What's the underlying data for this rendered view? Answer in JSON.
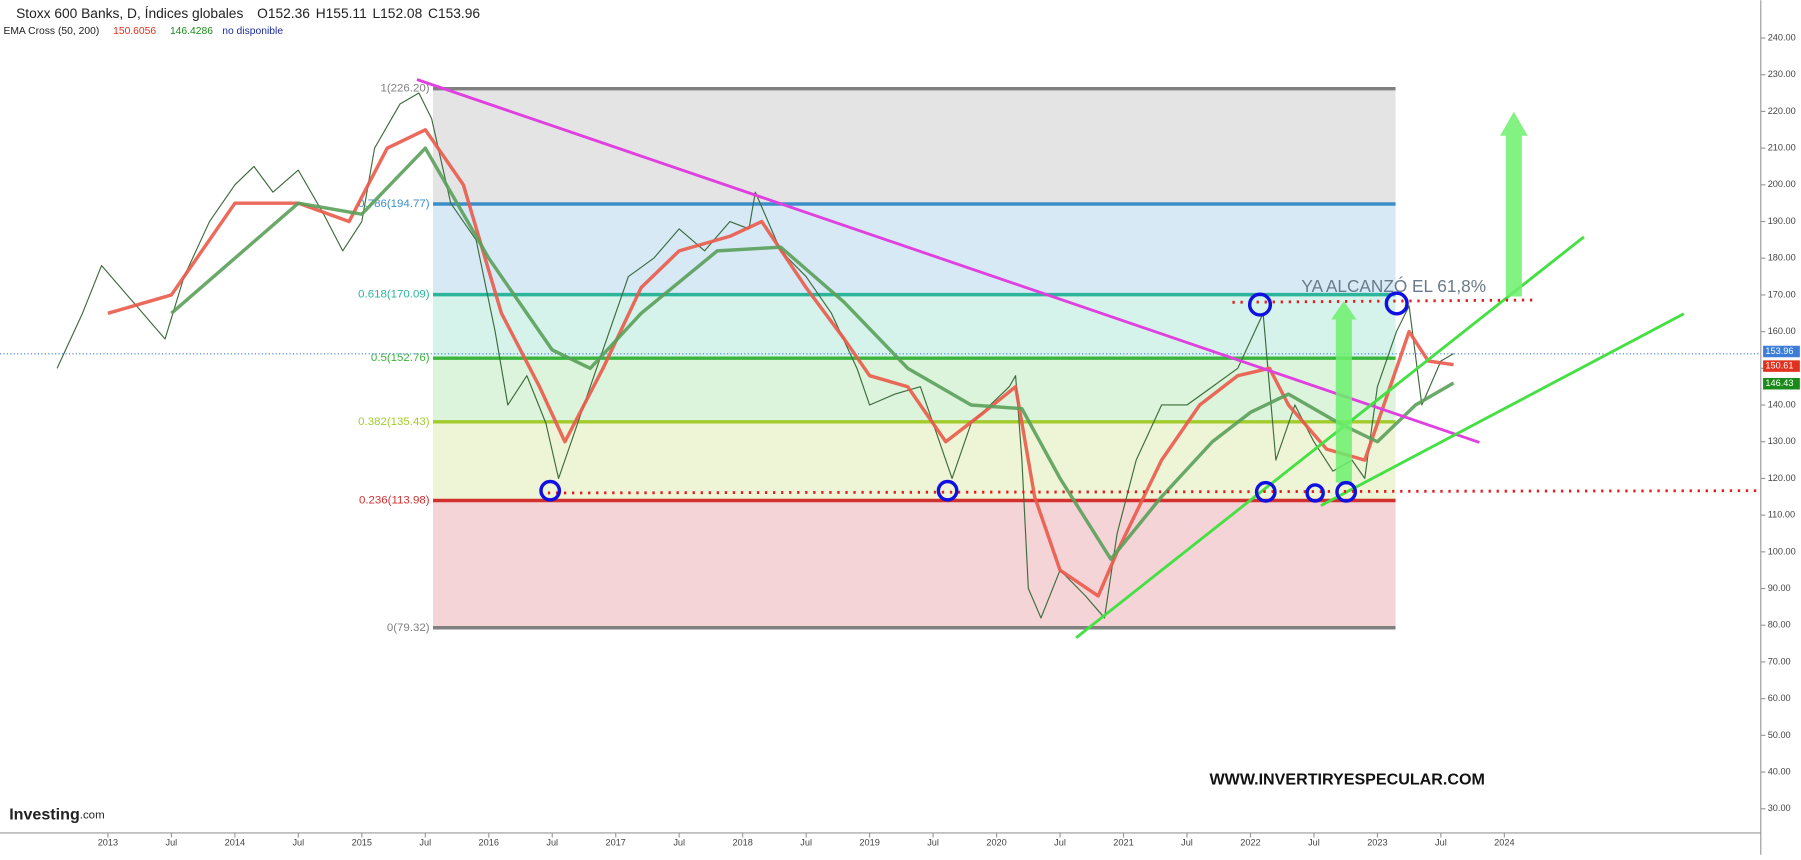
{
  "chart_data": {
    "type": "line",
    "title": "Stoxx 600 Banks, D, Índices globales",
    "ohlc": [
      {
        "key": "O",
        "value": 152.36
      },
      {
        "key": "H",
        "value": 155.11
      },
      {
        "key": "L",
        "value": 152.08
      },
      {
        "key": "C",
        "value": 153.96
      }
    ],
    "indicator": {
      "name": "EMA Cross (50, 200)",
      "values": [
        150.6056,
        146.4286
      ],
      "colors": [
        "#e0301e",
        "#1a8a1a"
      ],
      "status": "no disponible"
    },
    "xlim": [
      2012.15,
      2026.02
    ],
    "xticks": [
      2013,
      {
        "value": 2013.5,
        "label": "Jul"
      },
      2014,
      {
        "value": 2014.5,
        "label": "Jul"
      },
      2015,
      {
        "value": 2015.5,
        "label": "Jul"
      },
      2016,
      {
        "value": 2016.5,
        "label": "Jul"
      },
      2017,
      {
        "value": 2017.5,
        "label": "Jul"
      },
      2018,
      {
        "value": 2018.5,
        "label": "Jul"
      },
      2019,
      {
        "value": 2019.5,
        "label": "Jul"
      },
      2020,
      {
        "value": 2020.5,
        "label": "Jul"
      },
      2021,
      {
        "value": 2021.5,
        "label": "Jul"
      },
      2022,
      {
        "value": 2022.5,
        "label": "Jul"
      },
      2023,
      {
        "value": 2023.5,
        "label": "Jul"
      },
      2024
    ],
    "ylim": [
      20.9,
      250.3
    ],
    "yticks": [
      {
        "value": 30,
        "label": "30.00"
      },
      {
        "value": 40,
        "label": "40.00"
      },
      {
        "value": 50,
        "label": "50.00"
      },
      {
        "value": 60,
        "label": "60.00"
      },
      {
        "value": 70,
        "label": "70.00"
      },
      {
        "value": 80,
        "label": "80.00"
      },
      {
        "value": 90,
        "label": "90.00"
      },
      {
        "value": 100,
        "label": "100.00"
      },
      {
        "value": 110,
        "label": "110.00"
      },
      {
        "value": 120,
        "label": "120.00"
      },
      {
        "value": 130,
        "label": "130.00"
      },
      {
        "value": 140,
        "label": "140.00"
      },
      {
        "value": 150,
        "label": "150.00"
      },
      {
        "value": 160,
        "label": "160.00"
      },
      {
        "value": 170,
        "label": "170.00"
      },
      {
        "value": 180,
        "label": "180.00"
      },
      {
        "value": 190,
        "label": "190.00"
      },
      {
        "value": 200,
        "label": "200.00"
      },
      {
        "value": 210,
        "label": "210.00"
      },
      {
        "value": 220,
        "label": "220.00"
      },
      {
        "value": 230,
        "label": "230.00"
      },
      {
        "value": 240,
        "label": "240.00"
      }
    ],
    "series": [
      {
        "color": "#3d6b3d",
        "width": 1,
        "x": [
          2012.6,
          2012.8,
          2012.95,
          2013.2,
          2013.45,
          2013.6,
          2013.8,
          2014.0,
          2014.15,
          2014.3,
          2014.5,
          2014.7,
          2014.85,
          2015.0,
          2015.1,
          2015.3,
          2015.45,
          2015.55,
          2015.7,
          2015.9,
          2016.05,
          2016.15,
          2016.3,
          2016.45,
          2016.55,
          2016.65,
          2016.8,
          2016.95,
          2017.1,
          2017.3,
          2017.5,
          2017.7,
          2017.9,
          2018.05,
          2018.1,
          2018.3,
          2018.5,
          2018.7,
          2018.9,
          2019.0,
          2019.2,
          2019.4,
          2019.55,
          2019.65,
          2019.8,
          2019.95,
          2020.1,
          2020.15,
          2020.2,
          2020.25,
          2020.35,
          2020.5,
          2020.7,
          2020.85,
          2020.95,
          2021.1,
          2021.3,
          2021.5,
          2021.7,
          2021.9,
          2022.1,
          2022.2,
          2022.35,
          2022.5,
          2022.65,
          2022.8,
          2022.9,
          2023.0,
          2023.15,
          2023.25,
          2023.35,
          2023.5,
          2023.6
        ],
        "values": [
          150,
          165,
          178,
          168,
          158,
          175,
          190,
          200,
          205,
          198,
          204,
          192,
          182,
          190,
          210,
          222,
          225,
          218,
          195,
          185,
          160,
          140,
          148,
          135,
          120,
          130,
          145,
          160,
          175,
          180,
          188,
          182,
          190,
          188,
          198,
          182,
          175,
          165,
          150,
          140,
          143,
          145,
          130,
          120,
          135,
          140,
          145,
          148,
          125,
          90,
          82,
          95,
          88,
          82,
          105,
          125,
          140,
          140,
          145,
          150,
          165,
          125,
          140,
          130,
          122,
          125,
          120,
          145,
          160,
          167,
          140,
          152,
          154
        ]
      },
      {
        "color": "#ea5a4a",
        "width": 3,
        "x": [
          2013.0,
          2013.5,
          2014.0,
          2014.5,
          2014.9,
          2015.2,
          2015.5,
          2015.8,
          2016.1,
          2016.4,
          2016.6,
          2016.9,
          2017.2,
          2017.5,
          2017.9,
          2018.15,
          2018.5,
          2018.8,
          2019.0,
          2019.3,
          2019.6,
          2019.9,
          2020.15,
          2020.3,
          2020.5,
          2020.8,
          2020.95,
          2021.3,
          2021.6,
          2021.9,
          2022.15,
          2022.3,
          2022.6,
          2022.9,
          2023.1,
          2023.25,
          2023.4,
          2023.6
        ],
        "values": [
          165,
          170,
          195,
          195,
          190,
          210,
          215,
          200,
          165,
          145,
          130,
          150,
          172,
          182,
          186,
          190,
          172,
          158,
          148,
          145,
          130,
          138,
          145,
          115,
          95,
          88,
          100,
          125,
          140,
          148,
          150,
          140,
          128,
          125,
          145,
          160,
          152,
          151
        ]
      },
      {
        "color": "#5aa05a",
        "width": 3,
        "x": [
          2013.5,
          2014.0,
          2014.5,
          2015.0,
          2015.5,
          2016.0,
          2016.5,
          2016.8,
          2017.2,
          2017.8,
          2018.3,
          2018.8,
          2019.3,
          2019.8,
          2020.2,
          2020.5,
          2020.9,
          2021.3,
          2021.7,
          2022.0,
          2022.3,
          2022.7,
          2023.0,
          2023.3,
          2023.6
        ],
        "values": [
          165,
          180,
          195,
          192,
          210,
          180,
          155,
          150,
          165,
          182,
          183,
          168,
          150,
          140,
          139,
          120,
          98,
          115,
          130,
          138,
          143,
          135,
          130,
          140,
          146
        ]
      }
    ],
    "fib_levels": [
      {
        "value": 226.2,
        "label": "1(226.20)",
        "color": "#808080",
        "fill": "#e4e4e4"
      },
      {
        "value": 194.77,
        "label": "0.786(194.77)",
        "color": "#3c8ec8",
        "fill": "#d6e9f5"
      },
      {
        "value": 170.09,
        "label": "0.618(170.09)",
        "color": "#2bb59a",
        "fill": "#d5f3ea"
      },
      {
        "value": 152.76,
        "label": "0.5(152.76)",
        "color": "#3bb43b",
        "fill": "#dcf3dc"
      },
      {
        "value": 135.43,
        "label": "0.382(135.43)",
        "color": "#a2cc2b",
        "fill": "#eef5d6"
      },
      {
        "value": 113.98,
        "label": "0.236(113.98)",
        "color": "#d22f2f",
        "fill": "#f4d4d6"
      },
      {
        "value": 79.32,
        "label": "0(79.32)",
        "color": "#808080"
      }
    ],
    "last_values": [
      {
        "value": 153.96,
        "color": "#3b7dd8"
      },
      {
        "value": 150.61,
        "color": "#e0301e"
      },
      {
        "value": 146.43,
        "color": "#1a8a1a"
      }
    ],
    "annotation": "YA ALCANZÓ EL 61,8%",
    "watermark": "WWW.INVERTIRYESPECULAR.COM",
    "logo": "Investing",
    "logo_suffix": ".com"
  }
}
